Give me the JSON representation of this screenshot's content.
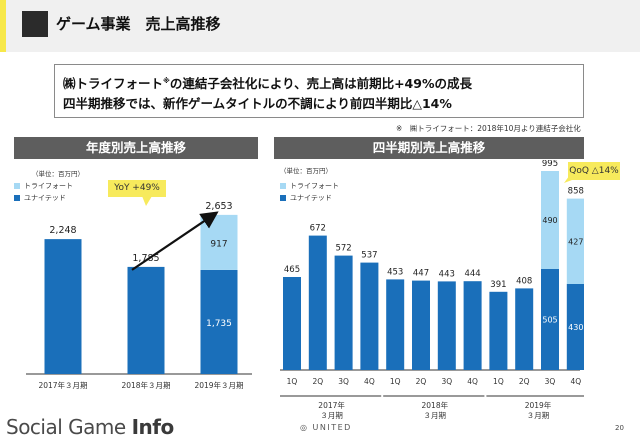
{
  "header": {
    "title": "ゲーム事業　売上高推移"
  },
  "summary": {
    "line1_prefix": "㈱トライフォート",
    "line1_mark": "※",
    "line1_suffix": "の連結子会社化により、売上高は前期比+49%の成長",
    "line2": "四半期推移では、新作ゲームタイトルの不調により前四半期比△14%"
  },
  "note": "※　㈱トライフォート：2018年10月より連結子会社化",
  "legend": {
    "triforte": "トライフォート",
    "united": "ユナイテッド"
  },
  "colors": {
    "united": "#1a6fba",
    "triforte": "#a6d9f4",
    "callout": "#f7ea5c",
    "panel_header": "#5e5e5e",
    "arrow": "#111111"
  },
  "chart_data": [
    {
      "type": "bar",
      "title": "年度別売上高推移",
      "unit_label": "（単位：百万円）",
      "categories": [
        "2017年３月期",
        "2018年３月期",
        "2019年３月期"
      ],
      "series": [
        {
          "name": "ユナイテッド",
          "values": [
            2248,
            1785,
            1735
          ]
        },
        {
          "name": "トライフォート",
          "values": [
            0,
            0,
            917
          ]
        }
      ],
      "totals": [
        2248,
        1785,
        2653
      ],
      "annotation": "YoY +49%",
      "ylim": [
        0,
        3000
      ],
      "legend_position": "top-left",
      "grid": false
    },
    {
      "type": "bar",
      "title": "四半期別売上高推移",
      "unit_label": "（単位：百万円）",
      "categories": [
        "1Q",
        "2Q",
        "3Q",
        "4Q",
        "1Q",
        "2Q",
        "3Q",
        "4Q",
        "1Q",
        "2Q",
        "3Q",
        "4Q"
      ],
      "groups": [
        {
          "label_top": "2017年",
          "label_bottom": "３月期"
        },
        {
          "label_top": "2018年",
          "label_bottom": "３月期"
        },
        {
          "label_top": "2019年",
          "label_bottom": "３月期"
        }
      ],
      "series": [
        {
          "name": "ユナイテッド",
          "values": [
            465,
            672,
            572,
            537,
            453,
            447,
            443,
            444,
            391,
            408,
            505,
            430
          ]
        },
        {
          "name": "トライフォート",
          "values": [
            0,
            0,
            0,
            0,
            0,
            0,
            0,
            0,
            0,
            0,
            490,
            427
          ]
        }
      ],
      "totals": [
        465,
        672,
        572,
        537,
        453,
        447,
        443,
        444,
        391,
        408,
        995,
        858
      ],
      "annotation": "QoQ △14%",
      "ylim": [
        0,
        1000
      ],
      "legend_position": "top-left",
      "grid": false
    }
  ],
  "footer": {
    "brand_prefix": "Social Game ",
    "brand_suffix": "Info",
    "logo": "UNITED",
    "page": "20"
  }
}
